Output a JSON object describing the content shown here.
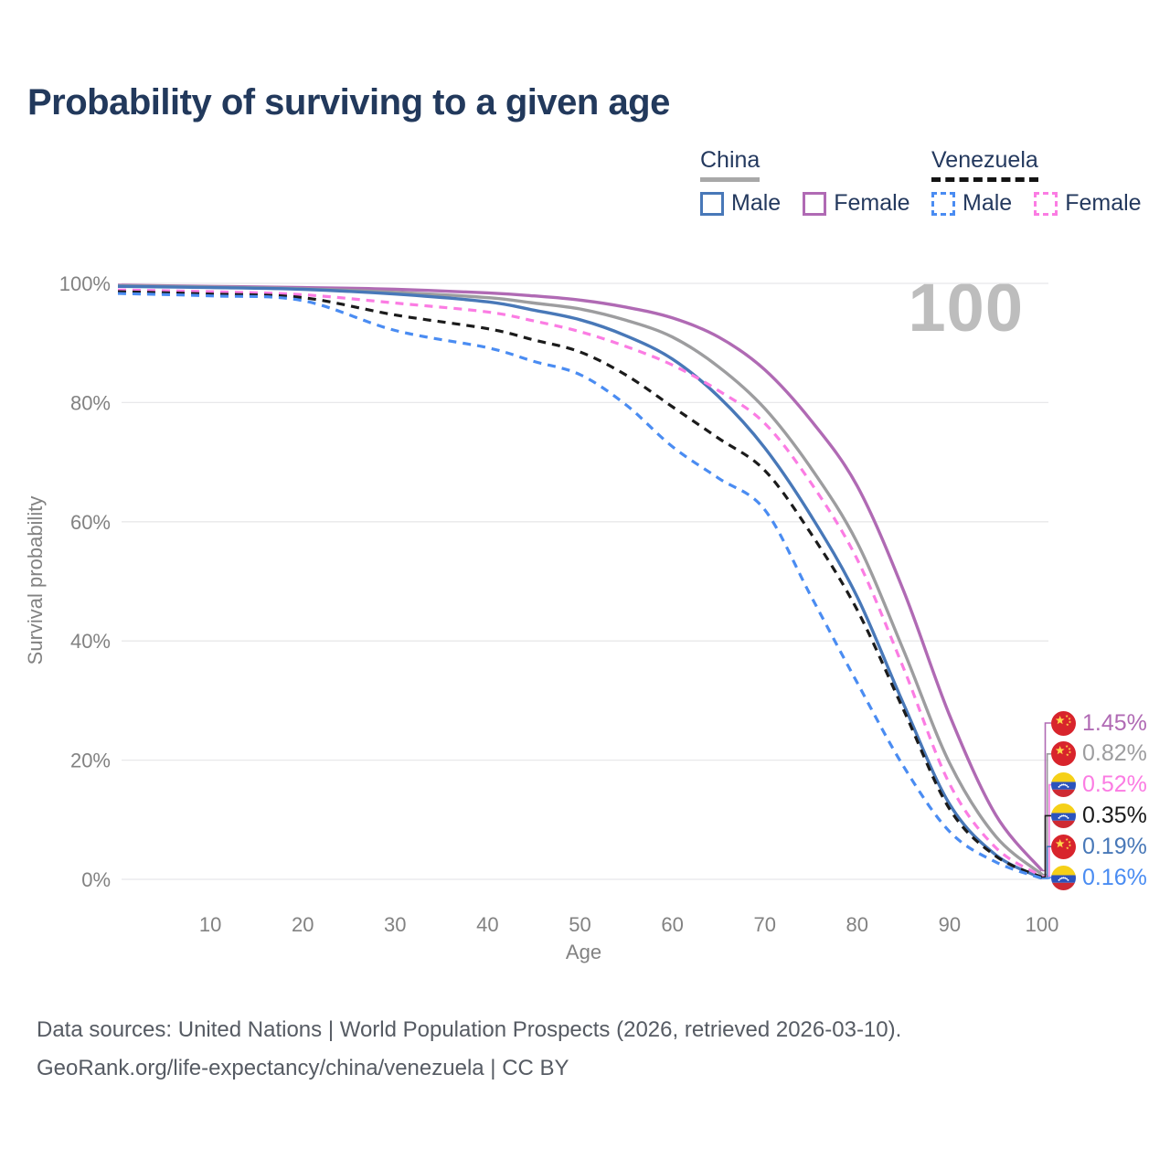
{
  "title": "Probability of surviving to a given age",
  "watermark": "100",
  "legend": {
    "groups": [
      {
        "country": "China",
        "underline": "solid",
        "underline_color": "#a8a8a8",
        "items": [
          {
            "label": "Male",
            "color": "#4878b8",
            "dashed": false
          },
          {
            "label": "Female",
            "color": "#b06ab4",
            "dashed": false
          }
        ]
      },
      {
        "country": "Venezuela",
        "underline": "dashed",
        "underline_color": "#141414",
        "items": [
          {
            "label": "Male",
            "color": "#4a8cf2",
            "dashed": true
          },
          {
            "label": "Female",
            "color": "#fb7ce3",
            "dashed": true
          }
        ]
      }
    ]
  },
  "chart_data": {
    "type": "line",
    "title": "Probability of surviving to a given age",
    "xlabel": "Age",
    "ylabel": "Survival probability",
    "xlim": [
      0,
      100
    ],
    "ylim": [
      0,
      100
    ],
    "grid": "horizontal",
    "legend_position": "top-right",
    "x_ticks": [
      10,
      20,
      30,
      40,
      50,
      60,
      70,
      80,
      90,
      100
    ],
    "y_ticks": [
      0,
      20,
      40,
      60,
      80,
      100
    ],
    "y_tick_suffix": "%",
    "age_marker": "100",
    "x": [
      0,
      10,
      20,
      30,
      40,
      45,
      50,
      55,
      60,
      65,
      70,
      75,
      80,
      85,
      90,
      95,
      100
    ],
    "series": [
      {
        "name": "China Female",
        "country": "china",
        "sex": "Female",
        "style": "solid",
        "color": "#b06ab4",
        "end_label": "1.45%",
        "values": [
          99.7,
          99.5,
          99.3,
          99.0,
          98.4,
          97.9,
          97.2,
          96.0,
          94.2,
          91.0,
          85.5,
          77.0,
          66.0,
          48.5,
          27.5,
          10.8,
          1.45
        ]
      },
      {
        "name": "China All",
        "country": "china",
        "sex": "All",
        "style": "solid",
        "color": "#9d9d9f",
        "end_label": "0.82%",
        "values": [
          99.6,
          99.4,
          99.1,
          98.5,
          97.6,
          96.7,
          95.7,
          93.8,
          91.0,
          86.0,
          79.0,
          69.0,
          56.5,
          38.5,
          19.5,
          7.2,
          0.82
        ]
      },
      {
        "name": "China Male",
        "country": "china",
        "sex": "Male",
        "style": "solid",
        "color": "#4878b8",
        "end_label": "0.19%",
        "values": [
          99.5,
          99.3,
          99.0,
          98.2,
          96.9,
          95.5,
          93.9,
          91.2,
          87.3,
          81.0,
          72.4,
          61.0,
          47.4,
          29.5,
          12.6,
          4.1,
          0.19
        ]
      },
      {
        "name": "Venezuela Female",
        "country": "venezuela",
        "sex": "Female",
        "style": "dashed",
        "color": "#fb7ce3",
        "end_label": "0.52%",
        "values": [
          98.9,
          98.6,
          98.1,
          96.7,
          95.2,
          93.7,
          91.9,
          89.4,
          86.3,
          82.0,
          76.5,
          66.5,
          53.7,
          35.5,
          16.0,
          5.3,
          0.52
        ]
      },
      {
        "name": "Venezuela All",
        "country": "venezuela",
        "sex": "All",
        "style": "dashed",
        "color": "#1b1b1b",
        "end_label": "0.35%",
        "values": [
          98.6,
          98.2,
          97.6,
          94.7,
          92.4,
          90.5,
          88.5,
          84.6,
          79.3,
          74.0,
          68.6,
          58.0,
          45.2,
          28.5,
          11.8,
          3.9,
          0.35
        ]
      },
      {
        "name": "Venezuela Male",
        "country": "venezuela",
        "sex": "Male",
        "style": "dashed",
        "color": "#4a8cf2",
        "end_label": "0.16%",
        "values": [
          98.3,
          97.9,
          97.1,
          92.1,
          89.2,
          86.9,
          84.7,
          79.6,
          72.6,
          67.3,
          62.0,
          47.5,
          33.0,
          19.0,
          8.0,
          2.9,
          0.16
        ]
      }
    ],
    "flag_colors": {
      "china": {
        "bg": "#d8242c",
        "star": "#ffd84b"
      },
      "venezuela": {
        "yellow": "#f5d018",
        "blue": "#2a53bd",
        "red": "#ce2a33",
        "stars": "#ffffff"
      }
    }
  },
  "footer": {
    "line1": "Data sources: United Nations | World Population Prospects (2026, retrieved 2026-03-10).",
    "line2": "GeoRank.org/life-expectancy/china/venezuela | CC BY"
  }
}
